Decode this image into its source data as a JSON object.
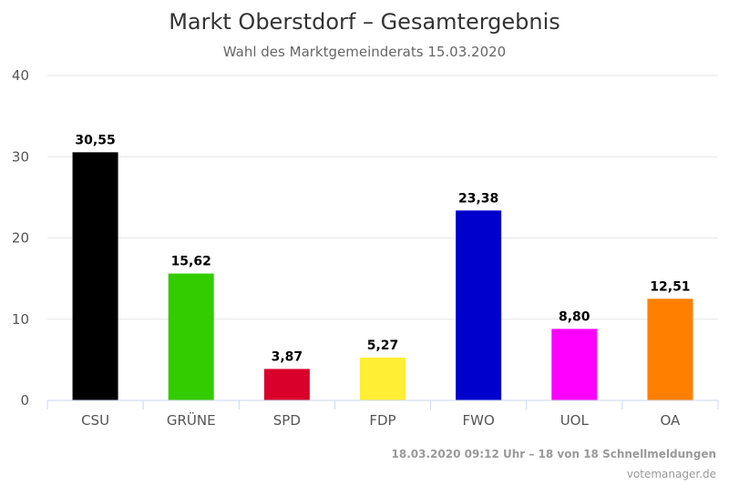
{
  "chart_data": {
    "type": "bar",
    "title": "Markt Oberstdorf – Gesamtergebnis",
    "subtitle": "Wahl des Marktgemeinderats 15.03.2020",
    "categories": [
      "CSU",
      "GRÜNE",
      "SPD",
      "FDP",
      "FWO",
      "UOL",
      "OA"
    ],
    "values": [
      30.55,
      15.62,
      3.87,
      5.27,
      23.38,
      8.8,
      12.51
    ],
    "value_labels": [
      "30,55",
      "15,62",
      "3,87",
      "5,27",
      "23,38",
      "8,80",
      "12,51"
    ],
    "colors": [
      "#000000",
      "#33cc00",
      "#d9002b",
      "#ffee33",
      "#0000cc",
      "#ff00ff",
      "#ff8000"
    ],
    "ylim": [
      0,
      40
    ],
    "yticks": [
      0,
      10,
      20,
      30,
      40
    ],
    "ytick_labels": [
      "0",
      "10",
      "20",
      "30",
      "40"
    ],
    "xlabel": "",
    "ylabel": "",
    "grid": true
  },
  "footer": {
    "timestamp": "18.03.2020 09:12 Uhr – 18 von 18 Schnellmeldungen",
    "source": "votemanager.de"
  }
}
